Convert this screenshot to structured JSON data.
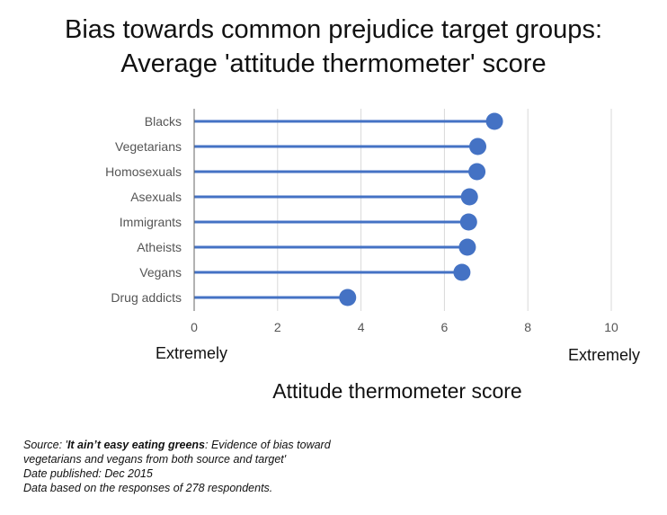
{
  "title_lines": [
    "Bias towards common prejudice target groups:",
    "Average 'attitude thermometer' score"
  ],
  "annotations": {
    "left_end": "Extremely",
    "right_end": "Extremely"
  },
  "source": {
    "prefix": "Source: '",
    "title_bold": "It ain’t easy eating greens",
    "title_rest": ": Evidence of bias toward",
    "line2": "vegetarians and vegans from both source and target'",
    "date": "Date published: Dec 2015",
    "note": "Data based on the responses of 278 respondents."
  },
  "colors": {
    "series": "#4472c4",
    "grid": "#d9d9d9",
    "axis": "#666666"
  },
  "chart_data": {
    "type": "lollipop",
    "title": "Bias towards common prejudice target groups: Average 'attitude thermometer' score",
    "xlabel": "Attitude thermometer score",
    "ylabel": "",
    "categories": [
      "Blacks",
      "Vegetarians",
      "Homosexuals",
      "Asexuals",
      "Immigrants",
      "Atheists",
      "Vegans",
      "Drug addicts"
    ],
    "values": [
      7.2,
      6.8,
      6.78,
      6.6,
      6.58,
      6.55,
      6.42,
      3.68
    ],
    "xlim": [
      0,
      10
    ],
    "xticks": [
      0,
      2,
      4,
      6,
      8,
      10
    ],
    "grid": "vertical",
    "legend": "none"
  }
}
